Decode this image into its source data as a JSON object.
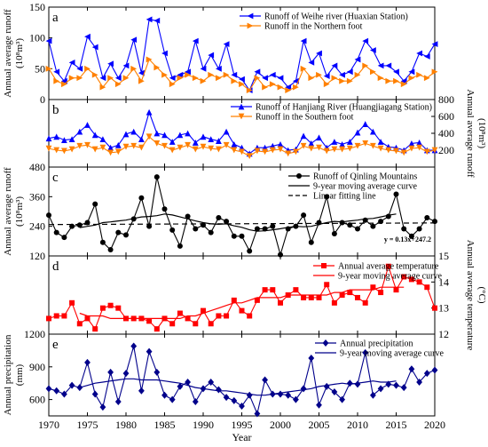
{
  "chart_data": [
    {
      "type": "line",
      "panel_label": "a",
      "ylabel": "Annual average runoff",
      "yunit": "(10⁸m³)",
      "ylim": [
        0,
        150
      ],
      "yticks": [
        0,
        50,
        100,
        150
      ],
      "years_start": 1970,
      "series": [
        {
          "name": "Runoff of Weihe river (Huaxian Station)",
          "color": "#0000ff",
          "marker": "triangle-left",
          "values": [
            95,
            45,
            30,
            60,
            50,
            102,
            85,
            35,
            58,
            35,
            55,
            97,
            43,
            130,
            128,
            75,
            35,
            40,
            45,
            95,
            50,
            72,
            50,
            90,
            40,
            33,
            15,
            45,
            35,
            40,
            35,
            20,
            30,
            95,
            60,
            75,
            38,
            55,
            40,
            45,
            65,
            95,
            80,
            55,
            55,
            45,
            30,
            45,
            75,
            70,
            90
          ]
        },
        {
          "name": "Runoff in the Northern foot",
          "color": "#ff8000",
          "marker": "triangle-right",
          "values": [
            50,
            30,
            25,
            35,
            35,
            50,
            40,
            20,
            35,
            25,
            35,
            50,
            30,
            65,
            52,
            40,
            25,
            35,
            40,
            35,
            30,
            40,
            35,
            40,
            30,
            25,
            15,
            35,
            20,
            25,
            20,
            15,
            20,
            50,
            35,
            40,
            25,
            35,
            30,
            30,
            40,
            55,
            45,
            35,
            30,
            30,
            25,
            35,
            40,
            35,
            45
          ]
        }
      ]
    },
    {
      "type": "line",
      "panel_label": "b",
      "ylabel": "Annual average runoff",
      "yunit": "(10⁸m³)",
      "axis_side": "right",
      "ylim": [
        0,
        800
      ],
      "yticks": [
        200,
        400,
        600,
        800
      ],
      "years_start": 1970,
      "series": [
        {
          "name": "Runoff of Hanjiang River (Huangjiagang Station)",
          "color": "#0000ff",
          "marker": "triangle-up",
          "values": [
            340,
            360,
            320,
            330,
            420,
            500,
            380,
            330,
            230,
            260,
            390,
            420,
            330,
            650,
            400,
            380,
            300,
            380,
            400,
            290,
            360,
            330,
            310,
            420,
            270,
            230,
            160,
            230,
            230,
            250,
            270,
            200,
            210,
            370,
            280,
            350,
            230,
            300,
            270,
            300,
            410,
            510,
            420,
            300,
            240,
            230,
            200,
            280,
            290,
            200,
            200
          ]
        },
        {
          "name": "Runoff in the Southern foot",
          "color": "#ff8000",
          "marker": "triangle-down",
          "values": [
            220,
            200,
            190,
            210,
            250,
            260,
            210,
            230,
            170,
            180,
            240,
            250,
            230,
            360,
            280,
            250,
            200,
            230,
            260,
            210,
            240,
            220,
            210,
            260,
            200,
            180,
            130,
            190,
            180,
            200,
            210,
            160,
            180,
            250,
            220,
            230,
            190,
            210,
            210,
            220,
            250,
            280,
            250,
            220,
            200,
            190,
            170,
            220,
            230,
            180,
            200
          ]
        }
      ]
    },
    {
      "type": "line",
      "panel_label": "c",
      "ylabel": "Annual average runoff",
      "yunit": "(10⁸m³)",
      "ylim": [
        120,
        480
      ],
      "yticks": [
        120,
        240,
        360,
        480
      ],
      "years_start": 1970,
      "annotation": "y = 0.13x+247.2",
      "series": [
        {
          "name": "Runoff of Qinling Mountains",
          "color": "#000000",
          "marker": "circle",
          "values": [
            285,
            215,
            195,
            240,
            245,
            255,
            330,
            175,
            145,
            215,
            205,
            270,
            355,
            240,
            440,
            310,
            225,
            160,
            280,
            230,
            245,
            215,
            275,
            260,
            200,
            200,
            140,
            230,
            230,
            240,
            125,
            230,
            240,
            285,
            175,
            255,
            360,
            210,
            255,
            245,
            230,
            265,
            240,
            260,
            280,
            370,
            230,
            200,
            230,
            275,
            260
          ]
        },
        {
          "name": "9-year moving average curve",
          "color": "#000000",
          "style": "solid",
          "start_year": 1974,
          "values": [
            235,
            240,
            245,
            255,
            258,
            262,
            265,
            272,
            278,
            280,
            283,
            290,
            286,
            278,
            270,
            262,
            255,
            250,
            248,
            250,
            242,
            236,
            226,
            220,
            222,
            226,
            230,
            236,
            240,
            238,
            240,
            248,
            255,
            260,
            258,
            262,
            265,
            270,
            272,
            278,
            285,
            290
          ]
        },
        {
          "name": "Linear fitting line",
          "color": "#000000",
          "style": "dashed",
          "values_endpoints": [
            247.2,
            253.7
          ]
        }
      ]
    },
    {
      "type": "line",
      "panel_label": "d",
      "ylabel": "Annual average temperature",
      "yunit": "(°C)",
      "axis_side": "right",
      "ylim": [
        12,
        15
      ],
      "yticks": [
        12,
        13,
        14,
        15
      ],
      "years_start": 1970,
      "series": [
        {
          "name": "Annual average temperature",
          "color": "#ff0000",
          "marker": "square",
          "values": [
            12.6,
            12.7,
            12.7,
            13.2,
            12.4,
            12.6,
            12.2,
            13.0,
            13.1,
            13.0,
            12.6,
            12.6,
            12.6,
            12.5,
            12.2,
            12.6,
            12.4,
            12.8,
            12.6,
            12.4,
            12.9,
            12.4,
            12.7,
            12.7,
            13.3,
            12.9,
            12.7,
            13.3,
            13.7,
            13.7,
            13.2,
            13.5,
            13.7,
            13.4,
            13.4,
            13.4,
            13.9,
            13.2,
            13.5,
            13.6,
            13.4,
            13.2,
            13.8,
            13.6,
            14.6,
            13.7,
            14.2,
            14.1,
            14.0,
            13.8,
            13.0
          ]
        },
        {
          "name": "9-year moving average curve",
          "color": "#ff0000",
          "style": "solid",
          "start_year": 1974,
          "values": [
            12.8,
            12.7,
            12.7,
            12.7,
            12.6,
            12.6,
            12.6,
            12.6,
            12.6,
            12.6,
            12.6,
            12.6,
            12.6,
            12.6,
            12.7,
            12.7,
            12.8,
            12.9,
            13.0,
            13.1,
            13.2,
            13.2,
            13.3,
            13.4,
            13.4,
            13.4,
            13.4,
            13.5,
            13.5,
            13.5,
            13.5,
            13.5,
            13.5,
            13.6,
            13.6,
            13.7,
            13.7,
            13.7,
            13.7,
            13.8,
            13.8,
            13.8,
            13.8
          ]
        }
      ]
    },
    {
      "type": "line",
      "panel_label": "e",
      "ylabel": "Annual precipitation",
      "yunit": "(mm)",
      "ylim": [
        450,
        1200
      ],
      "yticks": [
        600,
        900,
        1200
      ],
      "years_start": 1970,
      "xlabel": "Year",
      "xticks": [
        1970,
        1975,
        1980,
        1985,
        1990,
        1995,
        2000,
        2005,
        2010,
        2015,
        2020
      ],
      "series": [
        {
          "name": "Annual precipitation",
          "color": "#00008b",
          "marker": "diamond",
          "values": [
            700,
            680,
            650,
            730,
            710,
            940,
            650,
            530,
            850,
            580,
            840,
            1090,
            680,
            1040,
            850,
            640,
            600,
            720,
            760,
            580,
            700,
            760,
            690,
            620,
            590,
            540,
            640,
            470,
            780,
            650,
            650,
            640,
            600,
            700,
            980,
            550,
            720,
            670,
            600,
            750,
            740,
            1030,
            640,
            700,
            740,
            730,
            710,
            880,
            760,
            840,
            870
          ]
        },
        {
          "name": "9-year moving average curve",
          "color": "#00008b",
          "style": "solid",
          "start_year": 1974,
          "values": [
            710,
            730,
            750,
            760,
            770,
            780,
            790,
            790,
            780,
            780,
            780,
            770,
            760,
            750,
            730,
            710,
            700,
            690,
            680,
            680,
            670,
            660,
            650,
            640,
            640,
            650,
            660,
            670,
            680,
            690,
            700,
            720,
            730,
            740,
            750,
            740,
            750,
            760,
            770,
            760,
            760,
            770
          ]
        }
      ]
    }
  ]
}
